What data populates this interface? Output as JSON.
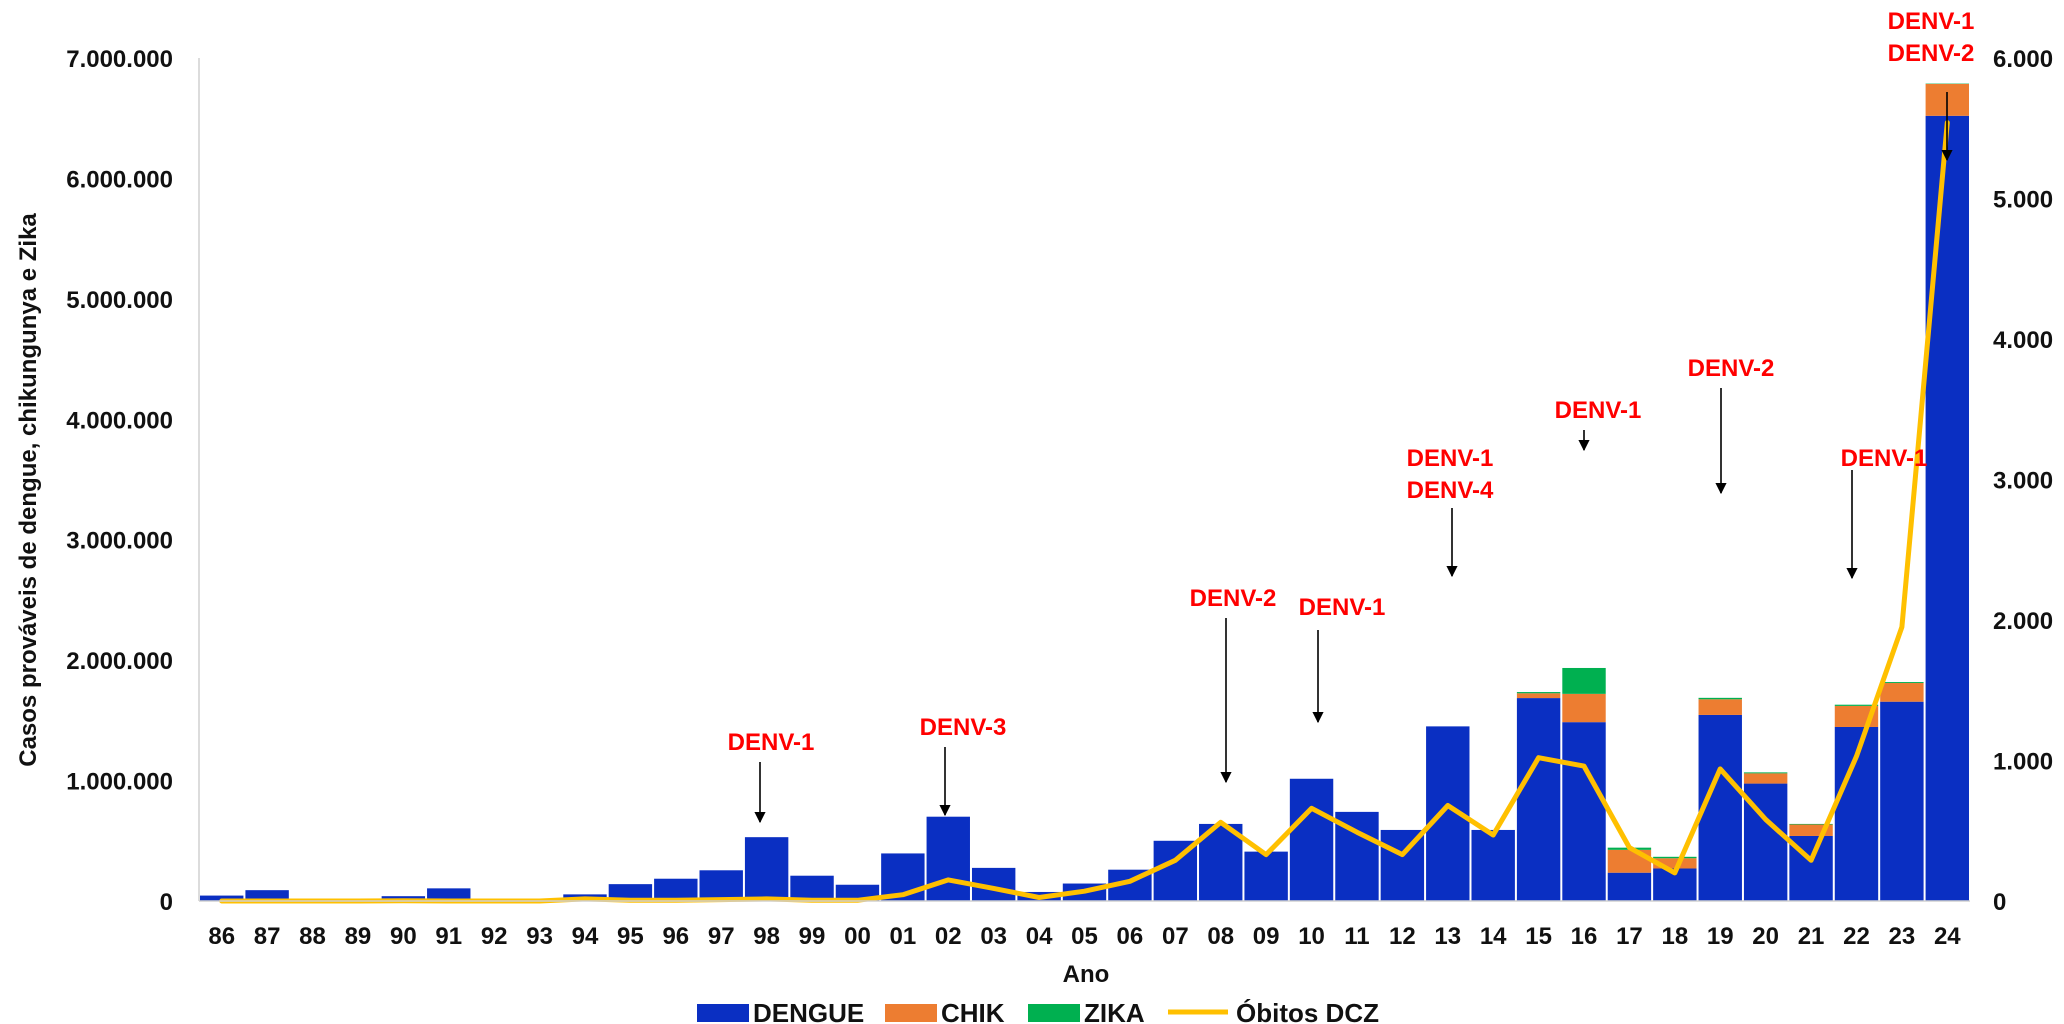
{
  "chart_data": {
    "type": "bar",
    "stacked": true,
    "title": "",
    "xlabel": "Ano",
    "ylabel": "Casos prováveis de dengue, chikungunya e Zika",
    "ylim": [
      0,
      7000000
    ],
    "y_ticks": [
      "0",
      "1.000.000",
      "2.000.000",
      "3.000.000",
      "4.000.000",
      "5.000.000",
      "6.000.000",
      "7.000.000"
    ],
    "y2lim": [
      0,
      6000
    ],
    "y2_ticks": [
      "0",
      "1.000",
      "2.000",
      "3.000",
      "4.000",
      "5.000",
      "6.000"
    ],
    "grid": false,
    "legend_position": "bottom",
    "categories": [
      "86",
      "87",
      "88",
      "89",
      "90",
      "91",
      "92",
      "93",
      "94",
      "95",
      "96",
      "97",
      "98",
      "99",
      "00",
      "01",
      "02",
      "03",
      "04",
      "05",
      "06",
      "07",
      "08",
      "09",
      "10",
      "11",
      "12",
      "13",
      "14",
      "15",
      "16",
      "17",
      "18",
      "19",
      "20",
      "21",
      "22",
      "23",
      "24"
    ],
    "series": [
      {
        "name": "DENGUE",
        "type": "bar",
        "axis": "left",
        "color": "#0a2fc2",
        "values": [
          45000,
          90000,
          0,
          0,
          40000,
          105000,
          0,
          0,
          55000,
          140000,
          185000,
          255000,
          530000,
          210000,
          135000,
          395000,
          700000,
          275000,
          75000,
          145000,
          260000,
          500000,
          640000,
          410000,
          1015000,
          740000,
          590000,
          1450000,
          590000,
          1685000,
          1485000,
          235000,
          270000,
          1545000,
          975000,
          540000,
          1445000,
          1655000,
          6520000
        ]
      },
      {
        "name": "CHIK",
        "type": "bar",
        "axis": "left",
        "color": "#ed7d31",
        "values": [
          0,
          0,
          0,
          0,
          0,
          0,
          0,
          0,
          0,
          0,
          0,
          0,
          0,
          0,
          0,
          0,
          0,
          0,
          0,
          0,
          0,
          0,
          0,
          0,
          0,
          0,
          0,
          0,
          0,
          40000,
          235000,
          190000,
          85000,
          130000,
          85000,
          95000,
          175000,
          155000,
          265000
        ]
      },
      {
        "name": "ZIKA",
        "type": "bar",
        "axis": "left",
        "color": "#00b050",
        "values": [
          0,
          0,
          0,
          0,
          0,
          0,
          0,
          0,
          0,
          0,
          0,
          0,
          0,
          0,
          0,
          0,
          0,
          0,
          0,
          0,
          0,
          0,
          0,
          0,
          0,
          0,
          0,
          0,
          0,
          10000,
          215000,
          18000,
          12000,
          12000,
          8000,
          5000,
          10000,
          8000,
          3000
        ]
      },
      {
        "name": "Óbitos DCZ",
        "type": "line",
        "axis": "right",
        "color": "#ffc000",
        "values": [
          0,
          0,
          0,
          0,
          2,
          0,
          0,
          0,
          15,
          5,
          5,
          10,
          15,
          5,
          5,
          45,
          150,
          90,
          25,
          70,
          140,
          290,
          560,
          330,
          660,
          490,
          330,
          680,
          470,
          1020,
          960,
          380,
          200,
          940,
          580,
          290,
          1030,
          1950,
          5540
        ]
      }
    ],
    "annotations": [
      {
        "lines": [
          "DENV-1"
        ],
        "color": "#ff0000",
        "category": "98"
      },
      {
        "lines": [
          "DENV-3"
        ],
        "color": "#ff0000",
        "category": "02"
      },
      {
        "lines": [
          "DENV-2"
        ],
        "color": "#ff0000",
        "category": "08"
      },
      {
        "lines": [
          "DENV-1"
        ],
        "color": "#ff0000",
        "category": "10"
      },
      {
        "lines": [
          "DENV-1",
          "DENV-4"
        ],
        "color": "#ff0000",
        "category": "13"
      },
      {
        "lines": [
          "DENV-1"
        ],
        "color": "#ff0000",
        "category": "16"
      },
      {
        "lines": [
          "DENV-2"
        ],
        "color": "#ff0000",
        "category": "19"
      },
      {
        "lines": [
          "DENV-1"
        ],
        "color": "#ff0000",
        "category": "22"
      },
      {
        "lines": [
          "DENV-1",
          "DENV-2"
        ],
        "color": "#ff0000",
        "category": "24"
      }
    ]
  }
}
